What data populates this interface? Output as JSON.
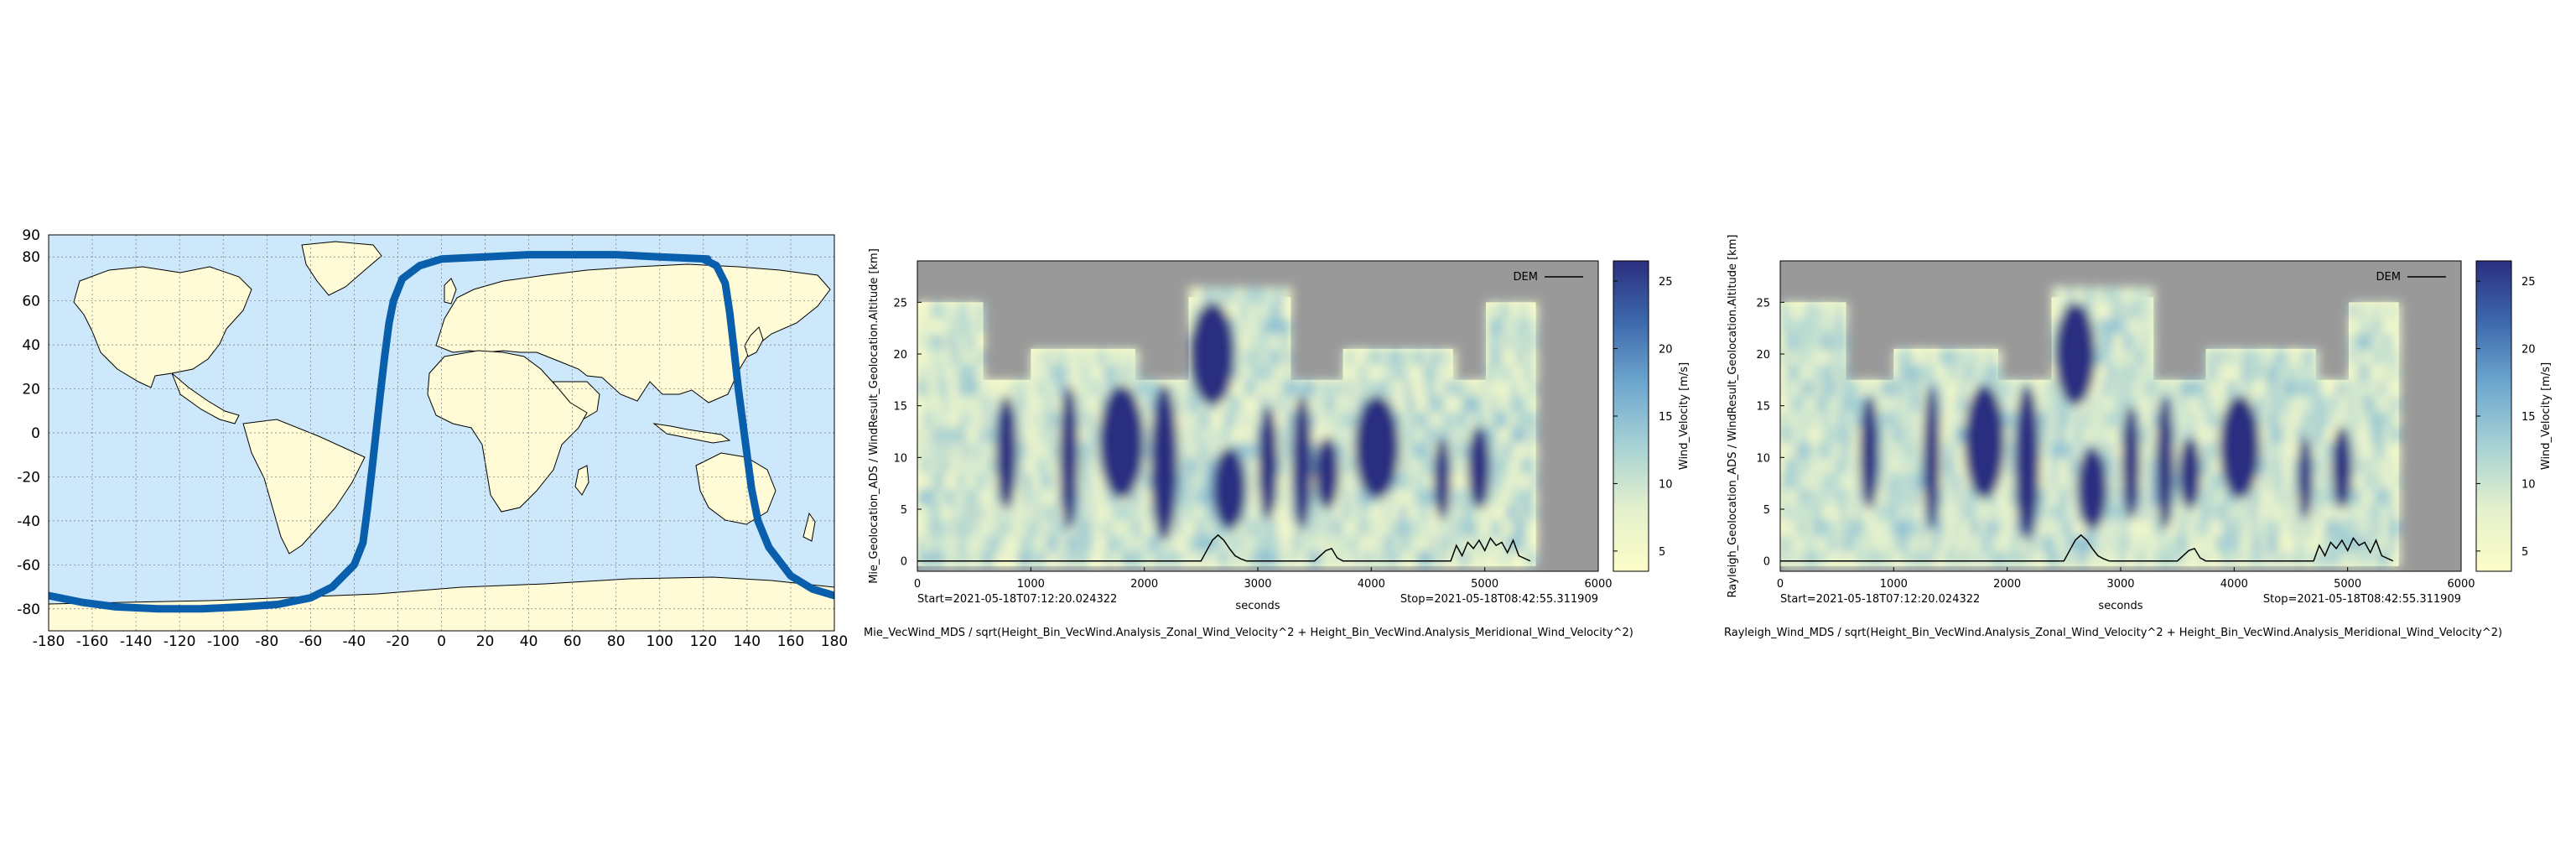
{
  "colors": {
    "ocean": "#cce8fa",
    "land": "#fffbd6",
    "coast": "#000000",
    "track": "#0a5fad",
    "no_data": "#999999",
    "dem_line": "#000000",
    "colormap": [
      "#fcfcc8",
      "#e4f1cc",
      "#a8d2d4",
      "#6fa8cf",
      "#3e6aad",
      "#2b2f80"
    ]
  },
  "chart_data": [
    {
      "type": "scatter",
      "panel": "map",
      "title": "",
      "xlabel": "",
      "ylabel": "",
      "xlim": [
        -180,
        180
      ],
      "ylim": [
        -90,
        90
      ],
      "xticks": [
        "-180",
        "-160",
        "-140",
        "-120",
        "-100",
        "-80",
        "-60",
        "-40",
        "-20",
        "0",
        "20",
        "40",
        "60",
        "80",
        "100",
        "120",
        "140",
        "160",
        "180"
      ],
      "yticks": [
        "90",
        "80",
        "60",
        "40",
        "20",
        "0",
        "-20",
        "-40",
        "-60",
        "-80"
      ],
      "grid": true,
      "series": [
        {
          "x": [
            122,
            100,
            80,
            60,
            40,
            20,
            0,
            -10,
            -18,
            -22,
            -24,
            -26,
            -28,
            -30,
            -32,
            -34,
            -36,
            -40,
            -50,
            -60,
            -75,
            -90,
            -110,
            -130,
            -150,
            -165,
            -180
          ],
          "y": [
            79,
            80,
            81,
            81,
            81,
            80,
            79,
            76,
            70,
            60,
            50,
            35,
            18,
            0,
            -18,
            -35,
            -50,
            -60,
            -70,
            -75,
            -78,
            -79,
            -80,
            -80,
            -79,
            -77,
            -74
          ]
        },
        {
          "x": [
            180,
            170,
            160,
            150,
            145,
            142,
            140,
            138,
            136,
            134,
            132,
            130,
            126,
            120
          ],
          "y": [
            -74,
            -71,
            -65,
            -52,
            -40,
            -25,
            -10,
            5,
            20,
            38,
            55,
            68,
            76,
            79
          ]
        }
      ]
    },
    {
      "type": "heatmap",
      "panel": "mie",
      "ylabel": "Mie_Geolocation_ADS / WindResult_Geolocation.Altitude [km]",
      "xlabel": "seconds",
      "colorbar_label": "Wind_Velocity [m/s]",
      "xlim": [
        0,
        6000
      ],
      "ylim": [
        -1,
        29
      ],
      "xticks": [
        "0",
        "1000",
        "2000",
        "3000",
        "4000",
        "5000",
        "6000"
      ],
      "yticks": [
        "0",
        "5",
        "10",
        "15",
        "20",
        "25"
      ],
      "colorbar_range": [
        3.5,
        26.5
      ],
      "colorbar_ticks": [
        "5",
        "10",
        "15",
        "20",
        "25"
      ],
      "legend": "DEM",
      "legend_position": "top-right",
      "start_label": "Start=2021-05-18T07:12:20.024322",
      "stop_label": "Stop=2021-05-18T08:42:55.311909",
      "bottom_caption": "Mie_VecWind_MDS / sqrt(Height_Bin_VecWind.Analysis_Zonal_Wind_Velocity^2 + Height_Bin_VecWind.Analysis_Meridional_Wind_Velocity^2)",
      "segments": [
        {
          "x": [
            0,
            580
          ],
          "top": 25
        },
        {
          "x": [
            580,
            1000
          ],
          "top": 17.5
        },
        {
          "x": [
            1000,
            1920
          ],
          "top": 20.5
        },
        {
          "x": [
            1920,
            2390
          ],
          "top": 17.5
        },
        {
          "x": [
            2390,
            3290
          ],
          "top": 25.5
        },
        {
          "x": [
            3290,
            3750
          ],
          "top": 17.5
        },
        {
          "x": [
            3750,
            4720
          ],
          "top": 20.5
        },
        {
          "x": [
            4720,
            5010
          ],
          "top": 17.5
        },
        {
          "x": [
            5010,
            5450
          ],
          "top": 25
        }
      ],
      "strong_zones": [
        {
          "x": [
            690,
            880
          ],
          "y": [
            5,
            16
          ]
        },
        {
          "x": [
            1250,
            1420
          ],
          "y": [
            3,
            17
          ]
        },
        {
          "x": [
            1600,
            2000
          ],
          "y": [
            6,
            17
          ]
        },
        {
          "x": [
            2050,
            2300
          ],
          "y": [
            2,
            17
          ]
        },
        {
          "x": [
            2400,
            2800
          ],
          "y": [
            15,
            25
          ]
        },
        {
          "x": [
            2600,
            2900
          ],
          "y": [
            3,
            11
          ]
        },
        {
          "x": [
            3000,
            3180
          ],
          "y": [
            4,
            15
          ]
        },
        {
          "x": [
            3300,
            3480
          ],
          "y": [
            3,
            16
          ]
        },
        {
          "x": [
            3500,
            3720
          ],
          "y": [
            5,
            12
          ]
        },
        {
          "x": [
            3850,
            4250
          ],
          "y": [
            6,
            16
          ]
        },
        {
          "x": [
            4550,
            4700
          ],
          "y": [
            4,
            12
          ]
        },
        {
          "x": [
            4850,
            5050
          ],
          "y": [
            5,
            13
          ]
        }
      ],
      "dem_line": {
        "x": [
          0,
          2500,
          2550,
          2600,
          2650,
          2700,
          2750,
          2800,
          2850,
          2900,
          3500,
          3600,
          3650,
          3700,
          3750,
          4700,
          4750,
          4800,
          4850,
          4900,
          4950,
          5000,
          5050,
          5100,
          5150,
          5200,
          5250,
          5300,
          5400
        ],
        "y": [
          0,
          0,
          1,
          2,
          2.5,
          2,
          1.2,
          0.5,
          0.2,
          0,
          0,
          1,
          1.2,
          0.3,
          0,
          0,
          1.5,
          0.5,
          1.8,
          1.2,
          2,
          1,
          2.2,
          1.5,
          1.8,
          0.8,
          2,
          0.5,
          0
        ]
      }
    },
    {
      "type": "heatmap",
      "panel": "rayleigh",
      "ylabel": "Rayleigh_Geolocation_ADS / WindResult_Geolocation.Altitude [km]",
      "xlabel": "seconds",
      "colorbar_label": "Wind_Velocity [m/s]",
      "xlim": [
        0,
        6000
      ],
      "ylim": [
        -1,
        29
      ],
      "xticks": [
        "0",
        "1000",
        "2000",
        "3000",
        "4000",
        "5000",
        "6000"
      ],
      "yticks": [
        "0",
        "5",
        "10",
        "15",
        "20",
        "25"
      ],
      "colorbar_range": [
        3.5,
        26.5
      ],
      "colorbar_ticks": [
        "5",
        "10",
        "15",
        "20",
        "25"
      ],
      "legend": "DEM",
      "legend_position": "top-right",
      "start_label": "Start=2021-05-18T07:12:20.024322",
      "stop_label": "Stop=2021-05-18T08:42:55.311909",
      "bottom_caption": "Rayleigh_Wind_MDS / sqrt(Height_Bin_VecWind.Analysis_Zonal_Wind_Velocity^2 + Height_Bin_VecWind.Analysis_Meridional_Wind_Velocity^2)"
    }
  ]
}
